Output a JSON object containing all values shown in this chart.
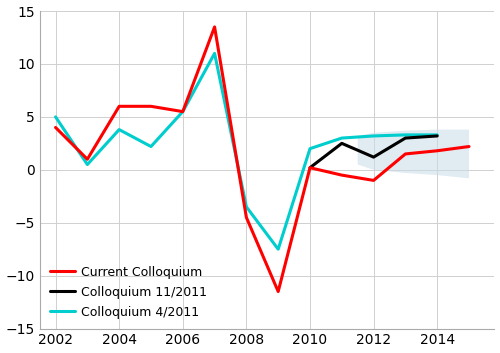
{
  "current_colloquium": {
    "x": [
      2002,
      2003,
      2004,
      2005,
      2006,
      2007,
      2008,
      2009,
      2010,
      2011,
      2012,
      2013,
      2014,
      2015
    ],
    "y": [
      4.0,
      1.0,
      6.0,
      6.0,
      5.5,
      13.5,
      -4.5,
      -11.5,
      0.2,
      -0.5,
      -1.0,
      1.5,
      1.8,
      2.2
    ],
    "color": "#ff0000",
    "linewidth": 2.2,
    "label": "Current Colloquium"
  },
  "colloquium_11_2011": {
    "x": [
      2010,
      2011,
      2012,
      2013,
      2014
    ],
    "y": [
      0.2,
      2.5,
      1.2,
      3.0,
      3.2
    ],
    "color": "#000000",
    "linewidth": 2.2,
    "label": "Colloquium 11/2011"
  },
  "colloquium_4_2011": {
    "x": [
      2002,
      2003,
      2004,
      2005,
      2006,
      2007,
      2008,
      2009,
      2010,
      2011,
      2012,
      2013,
      2014
    ],
    "y": [
      5.0,
      0.5,
      3.8,
      2.2,
      5.5,
      11.0,
      -3.5,
      -7.5,
      2.0,
      3.0,
      3.2,
      3.3,
      3.3
    ],
    "color": "#00cdcd",
    "linewidth": 2.2,
    "label": "Colloquium 4/2011"
  },
  "confidence_band": {
    "x": [
      2011.5,
      2012,
      2013,
      2014,
      2015,
      2015,
      2014,
      2013,
      2012,
      2011.5
    ],
    "y": [
      0.5,
      0.0,
      -0.3,
      -0.5,
      -0.8,
      3.8,
      3.8,
      3.7,
      3.5,
      3.2
    ],
    "color": "#c8dce8",
    "alpha": 0.55
  },
  "xlim": [
    2001.5,
    2015.8
  ],
  "ylim": [
    -15,
    15
  ],
  "xticks": [
    2002,
    2004,
    2006,
    2008,
    2010,
    2012,
    2014
  ],
  "yticks": [
    -15,
    -10,
    -5,
    0,
    5,
    10,
    15
  ],
  "grid_color": "#d0d0d0",
  "background_color": "#ffffff",
  "tick_fontsize": 10,
  "legend_fontsize": 9
}
